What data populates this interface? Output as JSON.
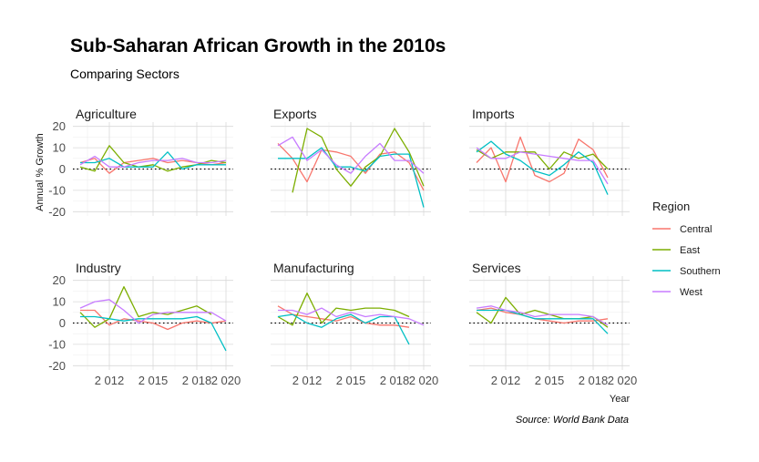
{
  "chart_data": {
    "type": "line",
    "title": "Sub-Saharan African Growth in the 2010s",
    "subtitle": "Comparing Sectors",
    "xlabel": "Year",
    "ylabel": "Annual % Growth",
    "caption": "Source: World Bank Data",
    "legend_title": "Region",
    "legend_position": "right",
    "grid": true,
    "ylim": [
      -22,
      22
    ],
    "xlim": [
      2009.5,
      2020.5
    ],
    "x_ticks": [
      2012,
      2015,
      2018,
      2020
    ],
    "x_tick_labels": [
      "2 012",
      "2 015",
      "2 018",
      "2 020"
    ],
    "y_ticks": [
      -20,
      -10,
      0,
      10,
      20
    ],
    "y_tick_labels": [
      "-20",
      "-10",
      "0",
      "10",
      "20"
    ],
    "reference_line": {
      "y": 0,
      "style": "dotted",
      "color": "#000000"
    },
    "x": [
      2010,
      2011,
      2012,
      2013,
      2014,
      2015,
      2016,
      2017,
      2018,
      2019,
      2020
    ],
    "regions": [
      {
        "name": "Central",
        "color": "#F8766D"
      },
      {
        "name": "East",
        "color": "#7CAE00"
      },
      {
        "name": "Southern",
        "color": "#00BFC4"
      },
      {
        "name": "West",
        "color": "#C77CFF"
      }
    ],
    "panels": [
      {
        "name": "Agriculture",
        "series": [
          {
            "name": "Central",
            "values": [
              3,
              5,
              -2,
              3,
              4,
              5,
              3,
              4,
              3,
              2,
              3
            ]
          },
          {
            "name": "East",
            "values": [
              1,
              -1,
              11,
              3,
              1,
              2,
              -1,
              1,
              2,
              4,
              3
            ]
          },
          {
            "name": "Southern",
            "values": [
              3,
              3,
              5,
              1,
              1,
              1,
              8,
              0,
              2,
              2,
              2
            ]
          },
          {
            "name": "West",
            "values": [
              2,
              6,
              1,
              1,
              3,
              4,
              4,
              5,
              3,
              3,
              4
            ]
          }
        ]
      },
      {
        "name": "Exports",
        "series": [
          {
            "name": "Central",
            "values": [
              12,
              5,
              -6,
              9,
              8,
              6,
              -2,
              7,
              8,
              3,
              -10
            ]
          },
          {
            "name": "East",
            "values": [
              null,
              -11,
              19,
              15,
              0,
              -8,
              1,
              6,
              19,
              8,
              -8
            ]
          },
          {
            "name": "Southern",
            "values": [
              5,
              5,
              5,
              10,
              1,
              1,
              -1,
              6,
              7,
              7,
              -18
            ]
          },
          {
            "name": "West",
            "values": [
              11,
              15,
              4,
              9,
              2,
              -2,
              6,
              12,
              4,
              4,
              -2
            ]
          }
        ]
      },
      {
        "name": "Imports",
        "series": [
          {
            "name": "Central",
            "values": [
              3,
              10,
              -6,
              15,
              -3,
              -6,
              -2,
              14,
              9,
              -4,
              null
            ]
          },
          {
            "name": "East",
            "values": [
              9,
              5,
              8,
              8,
              8,
              0,
              8,
              5,
              7,
              0,
              null
            ]
          },
          {
            "name": "Southern",
            "values": [
              8,
              13,
              7,
              4,
              -1,
              -3,
              2,
              8,
              3,
              -12,
              null
            ]
          },
          {
            "name": "West",
            "values": [
              10,
              5,
              5,
              8,
              7,
              6,
              5,
              4,
              4,
              -7,
              null
            ]
          }
        ]
      },
      {
        "name": "Industry",
        "series": [
          {
            "name": "Central",
            "values": [
              6,
              6,
              -1,
              2,
              1,
              0,
              -3,
              0,
              1,
              0,
              1
            ]
          },
          {
            "name": "East",
            "values": [
              5,
              -2,
              2,
              17,
              3,
              5,
              4,
              6,
              8,
              4,
              null
            ]
          },
          {
            "name": "Southern",
            "values": [
              3,
              3,
              2,
              1,
              2,
              2,
              2,
              2,
              3,
              0,
              -13
            ]
          },
          {
            "name": "West",
            "values": [
              7,
              10,
              11,
              6,
              0,
              4,
              5,
              5,
              5,
              5,
              1
            ]
          }
        ]
      },
      {
        "name": "Manufacturing",
        "series": [
          {
            "name": "Central",
            "values": [
              8,
              4,
              3,
              2,
              1,
              3,
              0,
              -1,
              -1,
              -2,
              null
            ]
          },
          {
            "name": "East",
            "values": [
              3,
              -1,
              14,
              0,
              7,
              6,
              7,
              7,
              6,
              3,
              null
            ]
          },
          {
            "name": "Southern",
            "values": [
              3,
              4,
              0,
              -2,
              2,
              4,
              0,
              3,
              3,
              -10,
              null
            ]
          },
          {
            "name": "West",
            "values": [
              6,
              6,
              4,
              7,
              3,
              5,
              3,
              4,
              3,
              2,
              -1
            ]
          }
        ]
      },
      {
        "name": "Services",
        "series": [
          {
            "name": "Central",
            "values": [
              6,
              7,
              5,
              4,
              2,
              1,
              0,
              1,
              1,
              2,
              null
            ]
          },
          {
            "name": "East",
            "values": [
              5,
              0,
              12,
              4,
              6,
              4,
              2,
              2,
              3,
              -2,
              null
            ]
          },
          {
            "name": "Southern",
            "values": [
              6,
              6,
              6,
              4,
              2,
              2,
              2,
              2,
              2,
              -5,
              null
            ]
          },
          {
            "name": "West",
            "values": [
              7,
              8,
              6,
              5,
              3,
              4,
              4,
              4,
              3,
              -1,
              null
            ]
          }
        ]
      }
    ]
  }
}
